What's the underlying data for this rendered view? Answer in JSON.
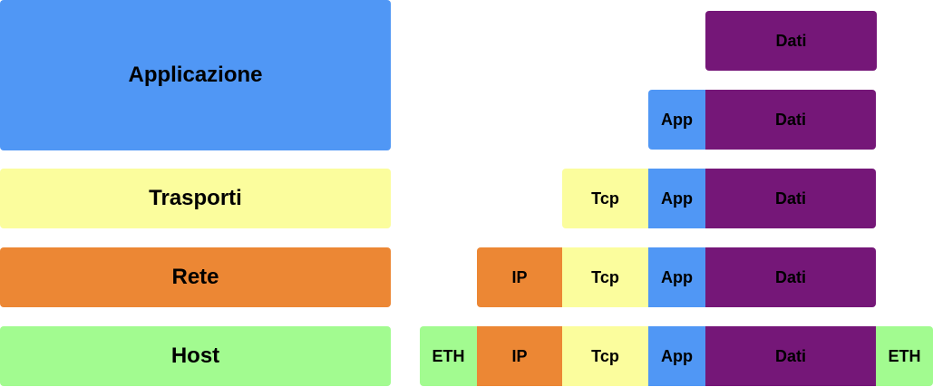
{
  "colors": {
    "app": "#5097F5",
    "transport": "#FBFD9D",
    "network": "#EC8734",
    "host": "#A2FB90",
    "data": "#751778"
  },
  "layers": {
    "application": "Applicazione",
    "transport": "Trasporti",
    "network": "Rete",
    "host": "Host"
  },
  "labels": {
    "data": "Dati",
    "app": "App",
    "tcp": "Tcp",
    "ip": "IP",
    "eth": "ETH"
  }
}
